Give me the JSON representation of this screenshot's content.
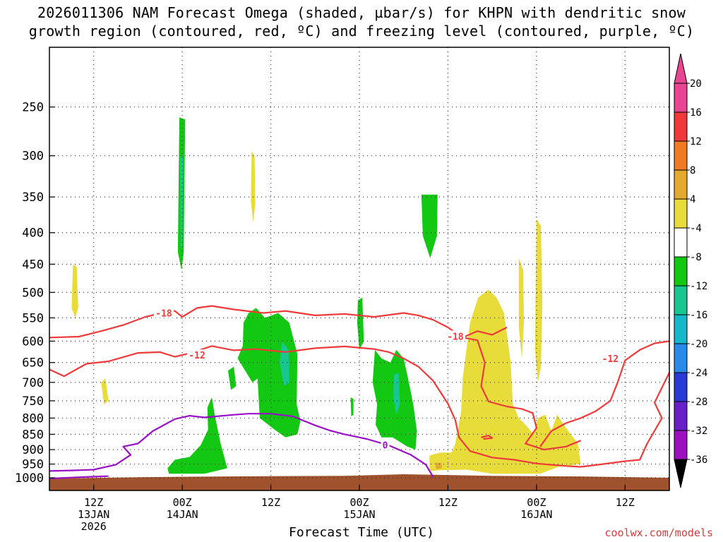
{
  "chart_data": {
    "type": "heatmap",
    "title_line1": "2026011306 NAM Forecast Omega (shaded, µbar/s) for KHPN with dendritic snow",
    "title_line2": "growth region (contoured, red, ºC) and freezing level (contoured, purple, ºC)",
    "xlabel": "Forecast Time (UTC)",
    "credit": "coolwx.com/models",
    "y_axis": {
      "scale": "log-pressure",
      "range_hpa": [
        1000,
        200
      ],
      "ticks": [
        "250",
        "300",
        "350",
        "400",
        "450",
        "500",
        "550",
        "600",
        "650",
        "700",
        "750",
        "800",
        "850",
        "900",
        "950",
        "1000"
      ]
    },
    "x_axis": {
      "range_hours": [
        0,
        84
      ],
      "ticks": [
        {
          "hour": 6,
          "lines": [
            "12Z",
            "13JAN",
            "2026"
          ]
        },
        {
          "hour": 18,
          "lines": [
            "00Z",
            "14JAN"
          ]
        },
        {
          "hour": 30,
          "lines": [
            "12Z"
          ]
        },
        {
          "hour": 42,
          "lines": [
            "00Z",
            "15JAN"
          ]
        },
        {
          "hour": 54,
          "lines": [
            "12Z"
          ]
        },
        {
          "hour": 66,
          "lines": [
            "00Z",
            "16JAN"
          ]
        },
        {
          "hour": 78,
          "lines": [
            "12Z"
          ]
        }
      ]
    },
    "colorbar": {
      "labels": [
        "20",
        "16",
        "12",
        "8",
        "4",
        "-4",
        "-8",
        "-12",
        "-16",
        "-20",
        "-24",
        "-28",
        "-32",
        "-36"
      ],
      "colors": [
        "#ea4592",
        "#f03a3a",
        "#f07a22",
        "#e4aa30",
        "#e8dc3a",
        "#ffffff",
        "#12c812",
        "#18c692",
        "#14b8c8",
        "#2a8ae8",
        "#2a3ad6",
        "#6a20c8",
        "#9c10c0",
        "#a0a0a0"
      ]
    },
    "omega_regions": [
      {
        "value": "-6",
        "color": "#12c812",
        "pts": [
          [
            17.6,
            260
          ],
          [
            18.4,
            262
          ],
          [
            18.2,
            430
          ],
          [
            17.9,
            460
          ],
          [
            17.4,
            430
          ]
        ]
      },
      {
        "value": "-14",
        "color": "#18c692",
        "pts": [
          [
            17.7,
            300
          ],
          [
            18.1,
            302
          ],
          [
            18.0,
            420
          ],
          [
            17.8,
            425
          ]
        ]
      },
      {
        "value": "6",
        "color": "#e8dc3a",
        "pts": [
          [
            27.4,
            295
          ],
          [
            27.8,
            300
          ],
          [
            27.9,
            360
          ],
          [
            27.6,
            385
          ],
          [
            27.3,
            355
          ]
        ]
      },
      {
        "value": "6",
        "color": "#e8dc3a",
        "pts": [
          [
            3.2,
            450
          ],
          [
            3.7,
            455
          ],
          [
            3.9,
            530
          ],
          [
            3.5,
            550
          ],
          [
            3.0,
            530
          ]
        ]
      },
      {
        "value": "6",
        "color": "#e8dc3a",
        "pts": [
          [
            7.0,
            700
          ],
          [
            7.6,
            690
          ],
          [
            8.0,
            750
          ],
          [
            7.4,
            760
          ]
        ]
      },
      {
        "value": "-6",
        "color": "#12c812",
        "pts": [
          [
            50.4,
            347
          ],
          [
            52.6,
            347
          ],
          [
            52.5,
            405
          ],
          [
            51.6,
            440
          ],
          [
            50.6,
            405
          ]
        ]
      },
      {
        "value": "-6",
        "color": "#12c812",
        "pts": [
          [
            16.0,
            965
          ],
          [
            17.0,
            935
          ],
          [
            19.0,
            925
          ],
          [
            20.5,
            885
          ],
          [
            21.5,
            835
          ],
          [
            21.4,
            770
          ],
          [
            22.0,
            740
          ],
          [
            22.4,
            790
          ],
          [
            23.2,
            880
          ],
          [
            24.1,
            965
          ],
          [
            21.0,
            985
          ],
          [
            16.2,
            985
          ]
        ]
      },
      {
        "value": "-6",
        "color": "#12c812",
        "pts": [
          [
            25.5,
            640
          ],
          [
            26.2,
            610
          ],
          [
            26.3,
            560
          ],
          [
            27.0,
            540
          ],
          [
            28.0,
            530
          ],
          [
            29.2,
            550
          ],
          [
            31.0,
            540
          ],
          [
            32.5,
            560
          ],
          [
            33.6,
            630
          ],
          [
            33.5,
            760
          ],
          [
            34.0,
            810
          ],
          [
            33.6,
            850
          ],
          [
            32.0,
            860
          ],
          [
            30.5,
            835
          ],
          [
            28.5,
            800
          ],
          [
            28.2,
            690
          ],
          [
            27.5,
            700
          ]
        ]
      },
      {
        "value": "-6",
        "color": "#12c812",
        "pts": [
          [
            24.2,
            670
          ],
          [
            25.0,
            660
          ],
          [
            25.3,
            710
          ],
          [
            24.6,
            720
          ]
        ]
      },
      {
        "value": "-14",
        "color": "#18c692",
        "pts": [
          [
            31.5,
            600
          ],
          [
            32.4,
            620
          ],
          [
            32.5,
            700
          ],
          [
            31.8,
            710
          ],
          [
            31.2,
            650
          ]
        ]
      },
      {
        "value": "-6",
        "color": "#12c812",
        "pts": [
          [
            41.8,
            515
          ],
          [
            42.4,
            510
          ],
          [
            42.6,
            600
          ],
          [
            42.0,
            620
          ],
          [
            41.7,
            560
          ]
        ]
      },
      {
        "value": "-6",
        "color": "#12c812",
        "pts": [
          [
            44.1,
            620
          ],
          [
            45.0,
            640
          ],
          [
            46.2,
            650
          ],
          [
            47.0,
            620
          ],
          [
            48.0,
            640
          ],
          [
            48.6,
            690
          ],
          [
            49.3,
            760
          ],
          [
            49.8,
            840
          ],
          [
            49.6,
            900
          ],
          [
            48.5,
            890
          ],
          [
            46.5,
            860
          ],
          [
            45.0,
            860
          ],
          [
            44.2,
            820
          ],
          [
            44.4,
            760
          ],
          [
            43.8,
            700
          ]
        ]
      },
      {
        "value": "-14",
        "color": "#18c692",
        "pts": [
          [
            46.7,
            680
          ],
          [
            47.3,
            675
          ],
          [
            47.5,
            760
          ],
          [
            47.0,
            790
          ],
          [
            46.6,
            740
          ]
        ]
      },
      {
        "value": "-6",
        "color": "#12c812",
        "pts": [
          [
            40.8,
            740
          ],
          [
            41.2,
            745
          ],
          [
            41.2,
            790
          ],
          [
            40.9,
            795
          ]
        ]
      },
      {
        "value": "6",
        "color": "#e8dc3a",
        "pts": [
          [
            51.5,
            920
          ],
          [
            53.0,
            910
          ],
          [
            54.5,
            910
          ],
          [
            55.0,
            880
          ],
          [
            55.8,
            780
          ],
          [
            56.0,
            690
          ],
          [
            56.5,
            620
          ],
          [
            57.0,
            560
          ],
          [
            58.1,
            510
          ],
          [
            59.0,
            500
          ],
          [
            59.5,
            495
          ],
          [
            60.6,
            510
          ],
          [
            61.6,
            540
          ],
          [
            62.5,
            650
          ],
          [
            62.8,
            760
          ],
          [
            63.6,
            800
          ],
          [
            64.5,
            820
          ],
          [
            65.6,
            850
          ],
          [
            66.2,
            800
          ],
          [
            67.2,
            790
          ],
          [
            68.0,
            840
          ],
          [
            68.8,
            790
          ],
          [
            70.0,
            830
          ],
          [
            71.6,
            880
          ],
          [
            72.0,
            950
          ],
          [
            69.0,
            960
          ],
          [
            66.5,
            985
          ],
          [
            60.0,
            985
          ],
          [
            56.5,
            970
          ],
          [
            53.0,
            972
          ],
          [
            51.5,
            975
          ]
        ]
      },
      {
        "value": "10",
        "color": "#e4aa30",
        "pts": [
          [
            52.3,
            945
          ],
          [
            53.1,
            945
          ],
          [
            53.2,
            965
          ],
          [
            52.4,
            968
          ]
        ]
      },
      {
        "value": "6",
        "color": "#e8dc3a",
        "pts": [
          [
            66.0,
            380
          ],
          [
            66.6,
            390
          ],
          [
            66.8,
            520
          ],
          [
            66.6,
            660
          ],
          [
            66.2,
            700
          ],
          [
            65.8,
            620
          ],
          [
            65.9,
            480
          ]
        ]
      },
      {
        "value": "6",
        "color": "#e8dc3a",
        "pts": [
          [
            63.6,
            440
          ],
          [
            64.2,
            460
          ],
          [
            64.3,
            560
          ],
          [
            64.0,
            640
          ],
          [
            63.6,
            570
          ]
        ]
      }
    ],
    "red_contours": [
      {
        "label": "-18",
        "label_at": [
          15.5,
          540
        ],
        "pts": [
          [
            0,
            592
          ],
          [
            4,
            590
          ],
          [
            7,
            578
          ],
          [
            10,
            565
          ],
          [
            13,
            548
          ],
          [
            15,
            541
          ],
          [
            17,
            536
          ],
          [
            18,
            548
          ],
          [
            20,
            530
          ],
          [
            22,
            526
          ],
          [
            25,
            533
          ],
          [
            29,
            540
          ],
          [
            32,
            536
          ],
          [
            36,
            545
          ],
          [
            40,
            542
          ],
          [
            44,
            548
          ],
          [
            48,
            540
          ],
          [
            50,
            545
          ],
          [
            52,
            554
          ],
          [
            54,
            570
          ],
          [
            56,
            592
          ],
          [
            58,
            578
          ],
          [
            60,
            586
          ],
          [
            62,
            570
          ]
        ]
      },
      {
        "label": "-12",
        "label_at": [
          20,
          632
        ],
        "pts": [
          [
            0,
            667
          ],
          [
            2,
            684
          ],
          [
            5,
            653
          ],
          [
            8,
            647
          ],
          [
            10,
            637
          ],
          [
            12,
            627
          ],
          [
            15,
            625
          ],
          [
            17,
            636
          ],
          [
            19,
            628
          ],
          [
            22,
            611
          ],
          [
            25,
            621
          ],
          [
            28,
            618
          ],
          [
            32,
            625
          ],
          [
            36,
            616
          ],
          [
            40,
            612
          ],
          [
            44,
            618
          ],
          [
            46,
            625
          ],
          [
            48,
            640
          ],
          [
            50,
            660
          ],
          [
            52,
            696
          ],
          [
            54,
            758
          ],
          [
            55,
            806
          ],
          [
            55.5,
            860
          ],
          [
            57,
            905
          ],
          [
            60,
            927
          ],
          [
            63,
            935
          ],
          [
            66,
            948
          ],
          [
            70,
            957
          ],
          [
            72,
            960
          ],
          [
            75,
            950
          ],
          [
            78,
            940
          ],
          [
            80,
            935
          ],
          [
            81,
            880
          ],
          [
            83,
            800
          ],
          [
            82,
            755
          ],
          [
            84,
            675
          ]
        ]
      },
      {
        "label": "-18",
        "label_at": [
          55,
          589
        ],
        "pts": [
          [
            56,
            592
          ],
          [
            58,
            598
          ],
          [
            59,
            650
          ],
          [
            58.5,
            710
          ],
          [
            59.5,
            752
          ],
          [
            62,
            766
          ],
          [
            64,
            773
          ],
          [
            65.5,
            785
          ],
          [
            66,
            830
          ],
          [
            64.5,
            880
          ],
          [
            67,
            900
          ],
          [
            70,
            890
          ],
          [
            72,
            870
          ]
        ]
      },
      {
        "label": "-12",
        "label_at": [
          76,
          640
        ],
        "pts": [
          [
            84,
            600
          ],
          [
            82,
            605
          ],
          [
            80,
            620
          ],
          [
            78,
            645
          ],
          [
            77,
            700
          ],
          [
            76,
            750
          ],
          [
            74,
            780
          ],
          [
            72,
            800
          ],
          [
            70,
            815
          ],
          [
            68,
            840
          ],
          [
            66.5,
            890
          ]
        ]
      },
      {
        "label": "",
        "label_at": null,
        "pts": [
          [
            58.5,
            860
          ],
          [
            59.5,
            854
          ],
          [
            60,
            862
          ],
          [
            58.8,
            865
          ]
        ]
      }
    ],
    "purple_contour": {
      "label": "0",
      "label_at": [
        45.5,
        884
      ],
      "pts": [
        [
          0,
          975
        ],
        [
          3,
          973
        ],
        [
          6,
          970
        ],
        [
          9,
          952
        ],
        [
          11,
          918
        ],
        [
          10,
          890
        ],
        [
          12,
          880
        ],
        [
          14,
          840
        ],
        [
          17,
          803
        ],
        [
          19,
          793
        ],
        [
          21,
          798
        ],
        [
          23,
          794
        ],
        [
          25,
          790
        ],
        [
          27,
          787
        ],
        [
          30,
          787
        ],
        [
          33,
          795
        ],
        [
          36,
          822
        ],
        [
          38,
          838
        ],
        [
          40,
          850
        ],
        [
          43,
          865
        ],
        [
          46,
          886
        ],
        [
          49,
          918
        ],
        [
          51,
          952
        ],
        [
          52,
          997
        ]
      ]
    },
    "purple_contour_2": {
      "label": "",
      "label_at": null,
      "pts": [
        [
          0,
          1003
        ],
        [
          4,
          998
        ],
        [
          8,
          994
        ]
      ]
    },
    "terrain": {
      "color": "#a0522d",
      "pts": [
        [
          0,
          1003
        ],
        [
          12,
          998
        ],
        [
          24,
          995
        ],
        [
          40,
          993
        ],
        [
          48,
          987
        ],
        [
          60,
          993
        ],
        [
          72,
          995
        ],
        [
          84,
          1000
        ]
      ]
    }
  }
}
